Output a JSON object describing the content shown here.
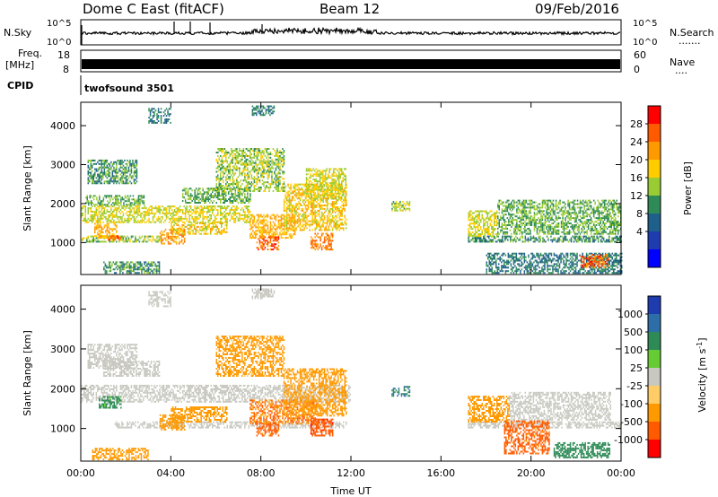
{
  "header": {
    "title": "Dome C East (fitACF)",
    "beam": "Beam 12",
    "date": "09/Feb/2016"
  },
  "top_panels": {
    "nsky_label": "N.Sky",
    "nsearch_label": "N.Search",
    "nsearch_marker": ".......",
    "nsky_ticks": [
      "10^5",
      "10^0"
    ],
    "freq_label_1": "Freq.",
    "freq_label_2": "[MHz]",
    "freq_ticks": [
      "18",
      "8"
    ],
    "nave_label": "Nave",
    "nave_marker": "....",
    "nave_ticks": [
      "60",
      "0"
    ],
    "cpid_label": "CPID",
    "cpid_value": "twofsound 3501"
  },
  "colorbars": {
    "power": {
      "label": "Power [dB]",
      "ticks": [
        "28",
        "24",
        "20",
        "16",
        "12",
        "8",
        "4"
      ],
      "colors": [
        "#ff0000",
        "#ff5a00",
        "#ff9900",
        "#ffcc00",
        "#99cc33",
        "#2e8b57",
        "#1f5f8b",
        "#1e3cb0",
        "#0000ff"
      ]
    },
    "velocity": {
      "label": "Velocity",
      "unit": "[m s",
      "unit_exp": "-1",
      "unit_end": "]",
      "ticks": [
        "1000",
        "500",
        "100",
        "25",
        "-25",
        "-100",
        "-500",
        "-1000"
      ],
      "colors": [
        "#1e3cb0",
        "#2e6ea8",
        "#2e8b57",
        "#66cc33",
        "#c8c8c0",
        "#ffcc66",
        "#ff9900",
        "#ff5a00",
        "#ff0000"
      ]
    }
  },
  "chart_data": [
    {
      "type": "heatmap",
      "name": "power",
      "title": "",
      "xlabel": "",
      "ylabel": "Slant Range [km]",
      "xlim": [
        0,
        24
      ],
      "ylim": [
        180,
        4600
      ],
      "xticks": [
        "00:00",
        "04:00",
        "08:00",
        "12:00",
        "16:00",
        "20:00",
        "00:00"
      ],
      "yticks": [
        1000,
        2000,
        3000,
        4000
      ],
      "bands": [
        {
          "t0": 0.0,
          "t1": 3.6,
          "r0": 1000,
          "r1": 1150,
          "v": 14
        },
        {
          "t0": 0.0,
          "t1": 7.5,
          "r0": 1500,
          "r1": 1950,
          "v": 16
        },
        {
          "t0": 0.2,
          "t1": 2.8,
          "r0": 1950,
          "r1": 2200,
          "v": 12
        },
        {
          "t0": 0.3,
          "t1": 2.5,
          "r0": 2500,
          "r1": 3100,
          "v": 10
        },
        {
          "t0": 0.6,
          "t1": 1.6,
          "r0": 1100,
          "r1": 1500,
          "v": 20
        },
        {
          "t0": 1.2,
          "t1": 1.8,
          "r0": 1050,
          "r1": 1150,
          "v": 26
        },
        {
          "t0": 3.5,
          "t1": 4.6,
          "r0": 950,
          "r1": 1350,
          "v": 22
        },
        {
          "t0": 4.0,
          "t1": 6.5,
          "r0": 1200,
          "r1": 1500,
          "v": 18
        },
        {
          "t0": 4.5,
          "t1": 7.5,
          "r0": 2000,
          "r1": 2400,
          "v": 12
        },
        {
          "t0": 6.0,
          "t1": 9.0,
          "r0": 2300,
          "r1": 3400,
          "v": 14
        },
        {
          "t0": 7.5,
          "t1": 9.5,
          "r0": 1100,
          "r1": 1700,
          "v": 20
        },
        {
          "t0": 7.8,
          "t1": 8.8,
          "r0": 800,
          "r1": 1150,
          "v": 26
        },
        {
          "t0": 9.0,
          "t1": 11.8,
          "r0": 1300,
          "r1": 2500,
          "v": 18
        },
        {
          "t0": 10.0,
          "t1": 11.8,
          "r0": 2100,
          "r1": 2900,
          "v": 16
        },
        {
          "t0": 10.2,
          "t1": 11.2,
          "r0": 800,
          "r1": 1250,
          "v": 24
        },
        {
          "t0": 13.8,
          "t1": 14.6,
          "r0": 1800,
          "r1": 2050,
          "v": 14
        },
        {
          "t0": 17.2,
          "t1": 24.0,
          "r0": 1000,
          "r1": 1150,
          "v": 10
        },
        {
          "t0": 17.2,
          "t1": 18.5,
          "r0": 1150,
          "r1": 1800,
          "v": 16
        },
        {
          "t0": 18.5,
          "t1": 24.0,
          "r0": 1200,
          "r1": 2100,
          "v": 12
        },
        {
          "t0": 18.0,
          "t1": 24.0,
          "r0": 200,
          "r1": 700,
          "v": 8
        },
        {
          "t0": 22.2,
          "t1": 23.4,
          "r0": 350,
          "r1": 700,
          "v": 26
        },
        {
          "t0": 1.0,
          "t1": 3.5,
          "r0": 200,
          "r1": 500,
          "v": 10
        },
        {
          "t0": 3.0,
          "t1": 4.0,
          "r0": 4050,
          "r1": 4450,
          "v": 8
        },
        {
          "t0": 7.6,
          "t1": 8.6,
          "r0": 4250,
          "r1": 4500,
          "v": 8
        }
      ]
    },
    {
      "type": "heatmap",
      "name": "velocity",
      "title": "",
      "xlabel": "Time UT",
      "ylabel": "Slant Range [km]",
      "xlim": [
        0,
        24
      ],
      "ylim": [
        180,
        4600
      ],
      "xticks": [
        "00:00",
        "04:00",
        "08:00",
        "12:00",
        "16:00",
        "20:00",
        "00:00"
      ],
      "yticks": [
        1000,
        2000,
        3000,
        4000
      ],
      "bands": [
        {
          "t0": 0.0,
          "t1": 12.0,
          "r0": 1650,
          "r1": 2100,
          "v": 0
        },
        {
          "t0": 1.0,
          "t1": 3.5,
          "r0": 2300,
          "r1": 2700,
          "v": 0
        },
        {
          "t0": 0.3,
          "t1": 2.5,
          "r0": 2500,
          "r1": 3100,
          "v": 0
        },
        {
          "t0": 1.5,
          "t1": 11.8,
          "r0": 1000,
          "r1": 1150,
          "v": 0
        },
        {
          "t0": 0.8,
          "t1": 1.8,
          "r0": 1500,
          "r1": 1800,
          "v": 80
        },
        {
          "t0": 3.5,
          "t1": 4.6,
          "r0": 950,
          "r1": 1350,
          "v": -200
        },
        {
          "t0": 4.0,
          "t1": 6.5,
          "r0": 1150,
          "r1": 1550,
          "v": -120
        },
        {
          "t0": 6.0,
          "t1": 9.0,
          "r0": 2300,
          "r1": 3300,
          "v": -80
        },
        {
          "t0": 7.5,
          "t1": 10.5,
          "r0": 1100,
          "r1": 1700,
          "v": -300
        },
        {
          "t0": 7.8,
          "t1": 8.8,
          "r0": 800,
          "r1": 1150,
          "v": -400
        },
        {
          "t0": 9.0,
          "t1": 11.8,
          "r0": 1300,
          "r1": 2500,
          "v": -150
        },
        {
          "t0": 10.2,
          "t1": 11.2,
          "r0": 800,
          "r1": 1250,
          "v": -600
        },
        {
          "t0": 13.8,
          "t1": 14.6,
          "r0": 1800,
          "r1": 2050,
          "v": 300
        },
        {
          "t0": 17.2,
          "t1": 24.0,
          "r0": 1000,
          "r1": 1150,
          "v": 0
        },
        {
          "t0": 17.2,
          "t1": 19.0,
          "r0": 1150,
          "r1": 1800,
          "v": -100
        },
        {
          "t0": 18.8,
          "t1": 20.8,
          "r0": 350,
          "r1": 1200,
          "v": -400
        },
        {
          "t0": 19.0,
          "t1": 23.5,
          "r0": 1200,
          "r1": 1900,
          "v": 0
        },
        {
          "t0": 21.0,
          "t1": 23.5,
          "r0": 250,
          "r1": 650,
          "v": 120
        },
        {
          "t0": 0.5,
          "t1": 3.0,
          "r0": 200,
          "r1": 500,
          "v": -150
        },
        {
          "t0": 3.0,
          "t1": 4.0,
          "r0": 4050,
          "r1": 4450,
          "v": 0
        },
        {
          "t0": 7.6,
          "t1": 8.6,
          "r0": 4250,
          "r1": 4500,
          "v": 0
        }
      ]
    }
  ]
}
